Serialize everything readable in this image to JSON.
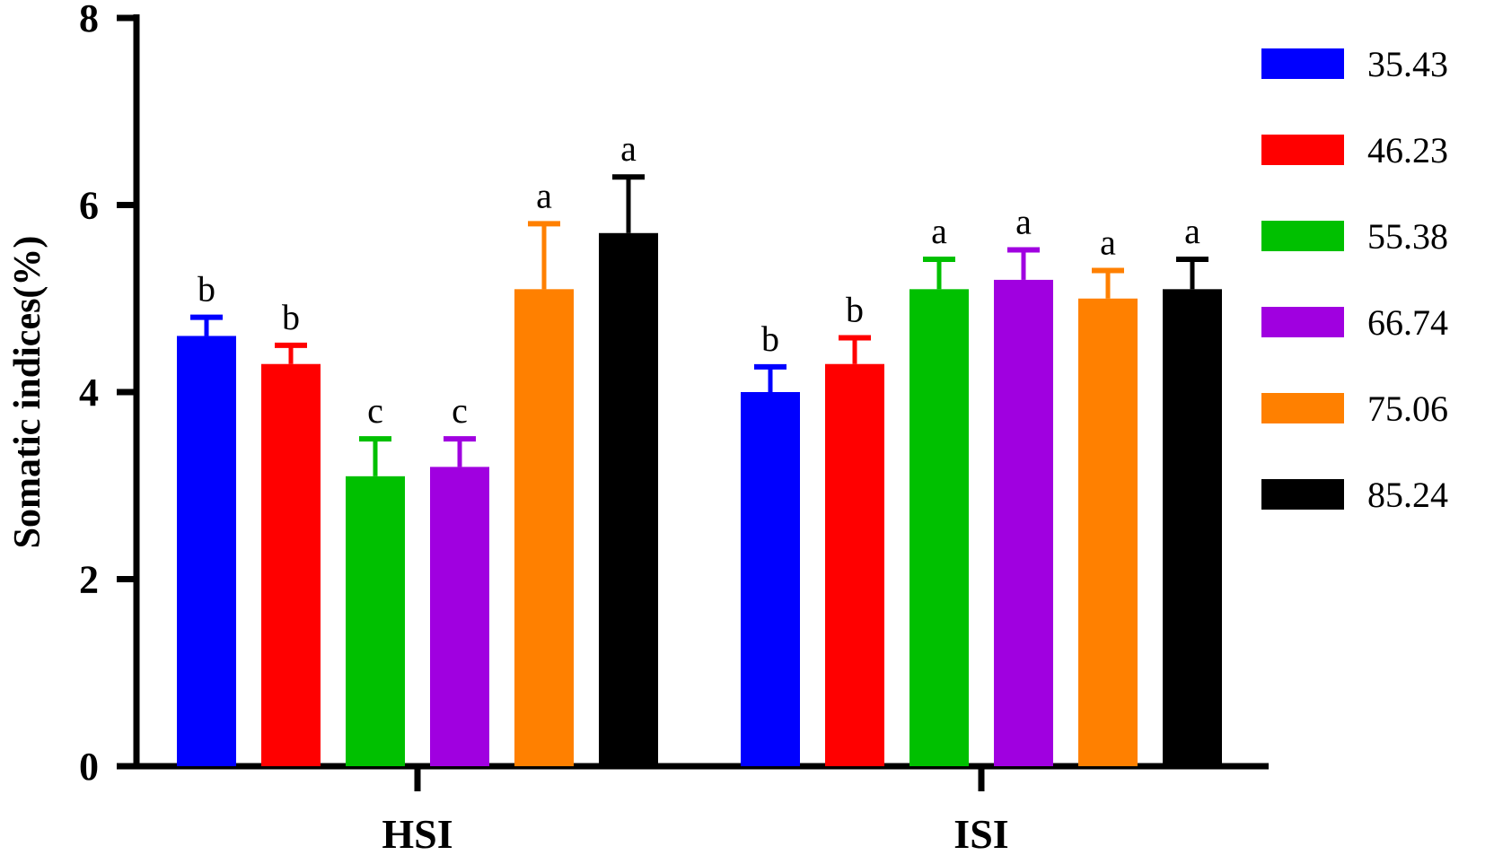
{
  "chart_data": {
    "type": "bar",
    "ylabel": "Somatic indices(%)",
    "xlabel": "",
    "ylim": [
      0,
      8
    ],
    "yticks": [
      0,
      2,
      4,
      6,
      8
    ],
    "categories": [
      "HSI",
      "ISI"
    ],
    "legend_position": "right",
    "series": [
      {
        "name": "35.43",
        "color": "#0000ff",
        "values": [
          4.6,
          4.0
        ],
        "errors": [
          0.2,
          0.27
        ],
        "sig": [
          "b",
          "b"
        ]
      },
      {
        "name": "46.23",
        "color": "#ff0000",
        "values": [
          4.3,
          4.3
        ],
        "errors": [
          0.2,
          0.28
        ],
        "sig": [
          "b",
          "b"
        ]
      },
      {
        "name": "55.38",
        "color": "#00c000",
        "values": [
          3.1,
          5.1
        ],
        "errors": [
          0.4,
          0.32
        ],
        "sig": [
          "c",
          "a"
        ]
      },
      {
        "name": "66.74",
        "color": "#a000e0",
        "values": [
          3.2,
          5.2
        ],
        "errors": [
          0.3,
          0.32
        ],
        "sig": [
          "c",
          "a"
        ]
      },
      {
        "name": "75.06",
        "color": "#ff8000",
        "values": [
          5.1,
          5.0
        ],
        "errors": [
          0.7,
          0.3
        ],
        "sig": [
          "a",
          "a"
        ]
      },
      {
        "name": "85.24",
        "color": "#000000",
        "values": [
          5.7,
          5.1
        ],
        "errors": [
          0.6,
          0.32
        ],
        "sig": [
          "a",
          "a"
        ]
      }
    ]
  }
}
